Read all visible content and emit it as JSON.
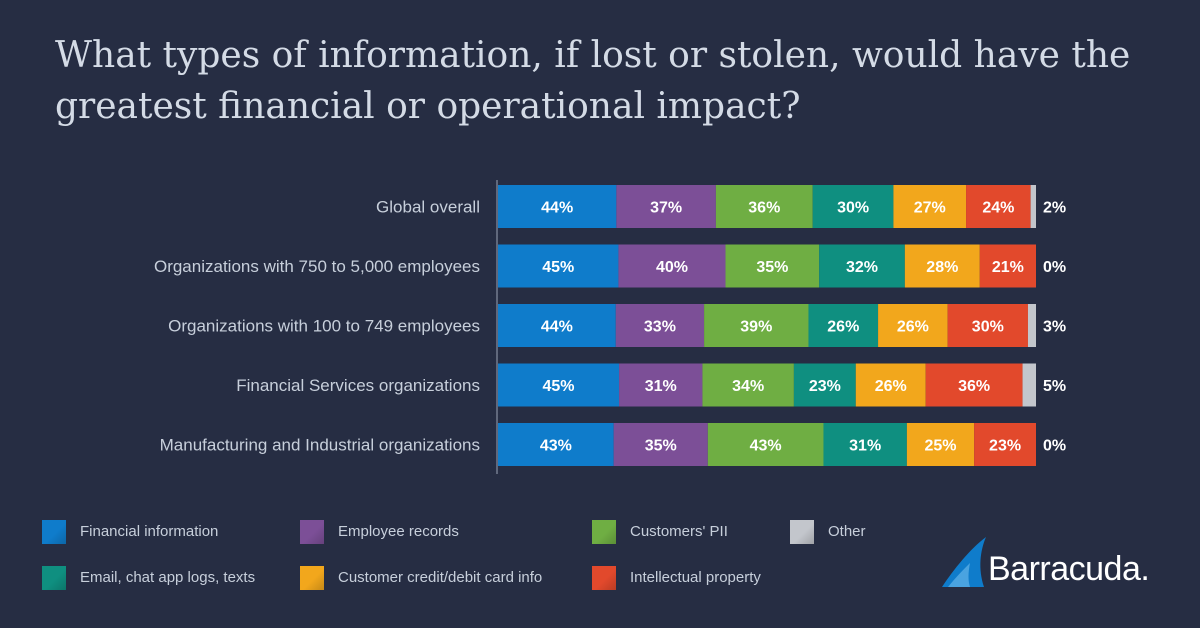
{
  "chart_data": {
    "type": "bar",
    "orientation": "horizontal",
    "stacked": true,
    "title": "What types of information, if lost or stolen, would have the greatest financial or operational impact?",
    "categories": [
      "Global overall",
      "Organizations with 750 to 5,000 employees",
      "Organizations with 100 to 749 employees",
      "Financial Services organizations",
      "Manufacturing and Industrial organizations"
    ],
    "series": [
      {
        "name": "Financial information",
        "color": "#0f7ccb",
        "values": [
          44,
          45,
          44,
          45,
          43
        ]
      },
      {
        "name": "Employee records",
        "color": "#7c4f97",
        "values": [
          37,
          40,
          33,
          31,
          35
        ]
      },
      {
        "name": "Customers' PII",
        "color": "#6fae43",
        "values": [
          36,
          35,
          39,
          34,
          43
        ]
      },
      {
        "name": "Email, chat app logs, texts",
        "color": "#0f8f80",
        "values": [
          30,
          32,
          26,
          23,
          31
        ]
      },
      {
        "name": "Customer credit/debit card info",
        "color": "#f2a71c",
        "values": [
          27,
          28,
          26,
          26,
          25
        ]
      },
      {
        "name": "Intellectual property",
        "color": "#e2492c",
        "values": [
          24,
          21,
          30,
          36,
          23
        ]
      },
      {
        "name": "Other",
        "color": "#c3c6cc",
        "values": [
          2,
          0,
          3,
          5,
          0
        ]
      }
    ],
    "value_suffix": "%",
    "legend_position": "bottom",
    "xlabel": "",
    "ylabel": ""
  },
  "legend": [
    {
      "label": "Financial information",
      "color": "#0f7ccb"
    },
    {
      "label": "Employee records",
      "color": "#7c4f97"
    },
    {
      "label": "Customers' PII",
      "color": "#6fae43"
    },
    {
      "label": "Other",
      "color": "#c3c6cc"
    },
    {
      "label": "Email, chat app logs, texts",
      "color": "#0f8f80"
    },
    {
      "label": "Customer credit/debit card info",
      "color": "#f2a71c"
    },
    {
      "label": "Intellectual property",
      "color": "#e2492c"
    }
  ],
  "brand": {
    "name": "Barracuda",
    "mark": "."
  }
}
